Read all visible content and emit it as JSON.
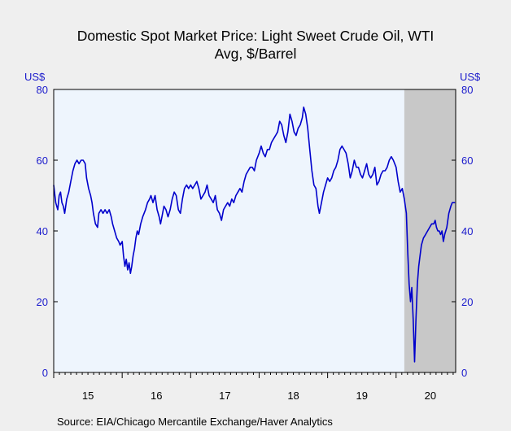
{
  "chart_data": {
    "type": "line",
    "title_line1": "Domestic Spot Market Price: Light Sweet Crude Oil, WTI",
    "title_line2": "Avg, $/Barrel",
    "y_unit_left": "US$",
    "y_unit_right": "US$",
    "ylim": [
      0,
      80
    ],
    "yticks": [
      0,
      20,
      40,
      60,
      80
    ],
    "xlim": [
      2015.0,
      2020.87
    ],
    "xtick_labels": [
      "15",
      "16",
      "17",
      "18",
      "19",
      "20"
    ],
    "recession_shading": {
      "start": 2020.12,
      "end": 2020.87,
      "color": "#c8c8c8"
    },
    "plot_background": "#eef5fd",
    "line_color": "#0000cc",
    "grid": false,
    "source": "Source:  EIA/Chicago Mercantile Exchange/Haver Analytics",
    "series": [
      {
        "values": [
          [
            2015.0,
            53
          ],
          [
            2015.03,
            48
          ],
          [
            2015.06,
            46
          ],
          [
            2015.08,
            50
          ],
          [
            2015.1,
            51
          ],
          [
            2015.12,
            48
          ],
          [
            2015.14,
            47
          ],
          [
            2015.16,
            45
          ],
          [
            2015.19,
            49
          ],
          [
            2015.22,
            51
          ],
          [
            2015.25,
            54
          ],
          [
            2015.28,
            57
          ],
          [
            2015.31,
            59
          ],
          [
            2015.34,
            60
          ],
          [
            2015.37,
            59
          ],
          [
            2015.4,
            60
          ],
          [
            2015.43,
            60
          ],
          [
            2015.46,
            59
          ],
          [
            2015.48,
            55
          ],
          [
            2015.51,
            52
          ],
          [
            2015.54,
            50
          ],
          [
            2015.56,
            48
          ],
          [
            2015.58,
            45
          ],
          [
            2015.61,
            42
          ],
          [
            2015.64,
            41
          ],
          [
            2015.66,
            45
          ],
          [
            2015.69,
            46
          ],
          [
            2015.72,
            45
          ],
          [
            2015.75,
            46
          ],
          [
            2015.78,
            45
          ],
          [
            2015.81,
            46
          ],
          [
            2015.84,
            44
          ],
          [
            2015.86,
            42
          ],
          [
            2015.89,
            40
          ],
          [
            2015.92,
            38
          ],
          [
            2015.95,
            37
          ],
          [
            2015.97,
            36
          ],
          [
            2016.0,
            37
          ],
          [
            2016.02,
            33
          ],
          [
            2016.04,
            30
          ],
          [
            2016.06,
            32
          ],
          [
            2016.08,
            29
          ],
          [
            2016.1,
            31
          ],
          [
            2016.12,
            28
          ],
          [
            2016.14,
            30
          ],
          [
            2016.16,
            33
          ],
          [
            2016.18,
            35
          ],
          [
            2016.2,
            38
          ],
          [
            2016.22,
            40
          ],
          [
            2016.24,
            39
          ],
          [
            2016.27,
            42
          ],
          [
            2016.3,
            44
          ],
          [
            2016.32,
            45
          ],
          [
            2016.34,
            46
          ],
          [
            2016.37,
            48
          ],
          [
            2016.4,
            49
          ],
          [
            2016.42,
            50
          ],
          [
            2016.45,
            48
          ],
          [
            2016.48,
            50
          ],
          [
            2016.51,
            46
          ],
          [
            2016.54,
            44
          ],
          [
            2016.56,
            42
          ],
          [
            2016.58,
            44
          ],
          [
            2016.61,
            47
          ],
          [
            2016.64,
            46
          ],
          [
            2016.67,
            44
          ],
          [
            2016.7,
            46
          ],
          [
            2016.73,
            49
          ],
          [
            2016.76,
            51
          ],
          [
            2016.79,
            50
          ],
          [
            2016.82,
            46
          ],
          [
            2016.85,
            45
          ],
          [
            2016.88,
            49
          ],
          [
            2016.91,
            52
          ],
          [
            2016.94,
            53
          ],
          [
            2016.97,
            52
          ],
          [
            2017.0,
            53
          ],
          [
            2017.03,
            52
          ],
          [
            2017.06,
            53
          ],
          [
            2017.09,
            54
          ],
          [
            2017.12,
            52
          ],
          [
            2017.15,
            49
          ],
          [
            2017.18,
            50
          ],
          [
            2017.21,
            51
          ],
          [
            2017.24,
            53
          ],
          [
            2017.27,
            50
          ],
          [
            2017.3,
            49
          ],
          [
            2017.33,
            48
          ],
          [
            2017.36,
            50
          ],
          [
            2017.39,
            46
          ],
          [
            2017.42,
            45
          ],
          [
            2017.45,
            43
          ],
          [
            2017.48,
            46
          ],
          [
            2017.51,
            47
          ],
          [
            2017.54,
            48
          ],
          [
            2017.57,
            47
          ],
          [
            2017.6,
            49
          ],
          [
            2017.63,
            48
          ],
          [
            2017.66,
            50
          ],
          [
            2017.69,
            51
          ],
          [
            2017.72,
            52
          ],
          [
            2017.75,
            51
          ],
          [
            2017.78,
            54
          ],
          [
            2017.81,
            56
          ],
          [
            2017.84,
            57
          ],
          [
            2017.87,
            58
          ],
          [
            2017.9,
            58
          ],
          [
            2017.93,
            57
          ],
          [
            2017.96,
            60
          ],
          [
            2018.0,
            62
          ],
          [
            2018.03,
            64
          ],
          [
            2018.06,
            62
          ],
          [
            2018.09,
            61
          ],
          [
            2018.12,
            63
          ],
          [
            2018.15,
            63
          ],
          [
            2018.18,
            65
          ],
          [
            2018.21,
            66
          ],
          [
            2018.24,
            67
          ],
          [
            2018.27,
            68
          ],
          [
            2018.3,
            71
          ],
          [
            2018.33,
            70
          ],
          [
            2018.36,
            67
          ],
          [
            2018.39,
            65
          ],
          [
            2018.42,
            68
          ],
          [
            2018.45,
            73
          ],
          [
            2018.48,
            71
          ],
          [
            2018.51,
            68
          ],
          [
            2018.54,
            67
          ],
          [
            2018.57,
            69
          ],
          [
            2018.6,
            70
          ],
          [
            2018.63,
            72
          ],
          [
            2018.65,
            75
          ],
          [
            2018.68,
            73
          ],
          [
            2018.71,
            69
          ],
          [
            2018.74,
            63
          ],
          [
            2018.77,
            57
          ],
          [
            2018.8,
            53
          ],
          [
            2018.83,
            52
          ],
          [
            2018.86,
            47
          ],
          [
            2018.88,
            45
          ],
          [
            2018.91,
            48
          ],
          [
            2018.94,
            51
          ],
          [
            2018.97,
            53
          ],
          [
            2019.0,
            55
          ],
          [
            2019.03,
            54
          ],
          [
            2019.06,
            55
          ],
          [
            2019.09,
            57
          ],
          [
            2019.12,
            58
          ],
          [
            2019.15,
            60
          ],
          [
            2019.18,
            63
          ],
          [
            2019.21,
            64
          ],
          [
            2019.24,
            63
          ],
          [
            2019.27,
            62
          ],
          [
            2019.3,
            59
          ],
          [
            2019.33,
            55
          ],
          [
            2019.36,
            57
          ],
          [
            2019.39,
            60
          ],
          [
            2019.42,
            58
          ],
          [
            2019.45,
            58
          ],
          [
            2019.48,
            56
          ],
          [
            2019.51,
            55
          ],
          [
            2019.54,
            57
          ],
          [
            2019.57,
            59
          ],
          [
            2019.6,
            56
          ],
          [
            2019.63,
            55
          ],
          [
            2019.66,
            56
          ],
          [
            2019.69,
            58
          ],
          [
            2019.72,
            53
          ],
          [
            2019.75,
            54
          ],
          [
            2019.78,
            56
          ],
          [
            2019.81,
            57
          ],
          [
            2019.84,
            57
          ],
          [
            2019.87,
            58
          ],
          [
            2019.9,
            60
          ],
          [
            2019.93,
            61
          ],
          [
            2019.96,
            60
          ],
          [
            2020.0,
            58
          ],
          [
            2020.03,
            54
          ],
          [
            2020.06,
            51
          ],
          [
            2020.09,
            52
          ],
          [
            2020.12,
            49
          ],
          [
            2020.15,
            45
          ],
          [
            2020.17,
            34
          ],
          [
            2020.19,
            25
          ],
          [
            2020.21,
            20
          ],
          [
            2020.23,
            24
          ],
          [
            2020.25,
            15
          ],
          [
            2020.27,
            3
          ],
          [
            2020.29,
            15
          ],
          [
            2020.31,
            25
          ],
          [
            2020.33,
            30
          ],
          [
            2020.35,
            33
          ],
          [
            2020.37,
            36
          ],
          [
            2020.4,
            38
          ],
          [
            2020.43,
            39
          ],
          [
            2020.46,
            40
          ],
          [
            2020.49,
            41
          ],
          [
            2020.52,
            42
          ],
          [
            2020.55,
            42
          ],
          [
            2020.57,
            43
          ],
          [
            2020.59,
            41
          ],
          [
            2020.61,
            40
          ],
          [
            2020.63,
            40
          ],
          [
            2020.65,
            39
          ],
          [
            2020.67,
            40
          ],
          [
            2020.69,
            37
          ],
          [
            2020.71,
            39
          ],
          [
            2020.74,
            41
          ],
          [
            2020.77,
            45
          ],
          [
            2020.8,
            47
          ],
          [
            2020.82,
            48
          ],
          [
            2020.86,
            48
          ]
        ]
      }
    ]
  }
}
